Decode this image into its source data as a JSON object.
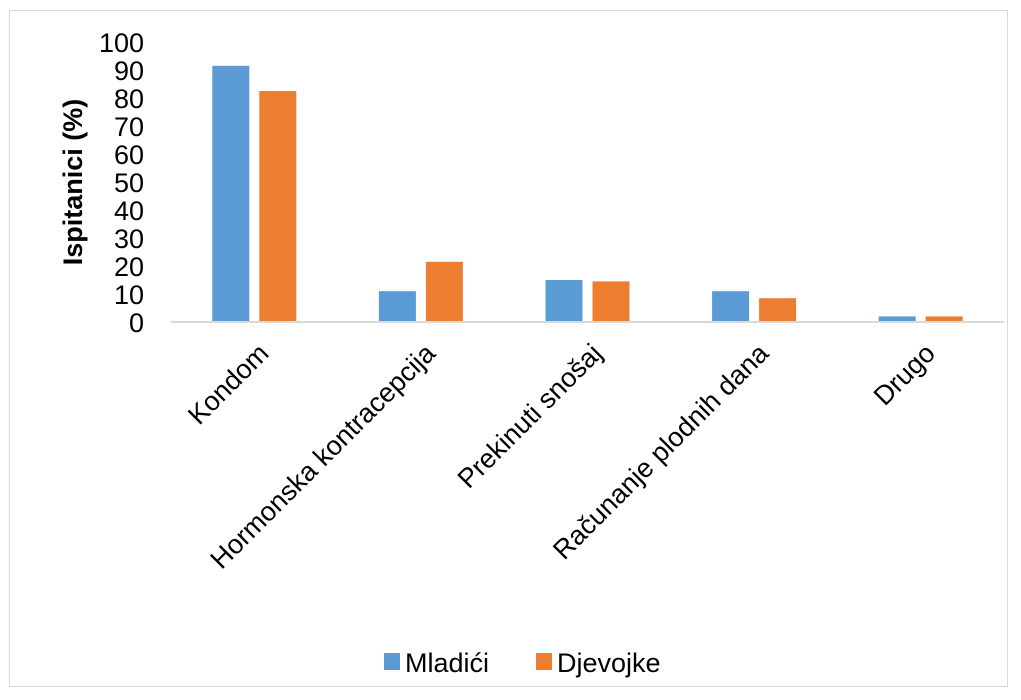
{
  "chart_data": {
    "type": "bar",
    "categories": [
      "Kondom",
      "Hormonska kontracepcija",
      "Prekinuti snošaj",
      "Računanje plodnih dana",
      "Drugo"
    ],
    "series": [
      {
        "name": "Mladići",
        "values": [
          91.5,
          11,
          15,
          11,
          2
        ]
      },
      {
        "name": "Djevojke",
        "values": [
          82.5,
          21.5,
          14.5,
          8.5,
          2
        ]
      }
    ],
    "ylabel": "Ispitanici (%)",
    "ylim": [
      0,
      100
    ],
    "yticks": [
      "0",
      "10",
      "20",
      "30",
      "40",
      "50",
      "60",
      "70",
      "80",
      "90",
      "100"
    ],
    "grid": false,
    "legend": "bottom"
  },
  "colors": {
    "Mladići": "#5b9bd5",
    "Djevojke": "#ed7d31",
    "axis": "#d9d9d9"
  }
}
